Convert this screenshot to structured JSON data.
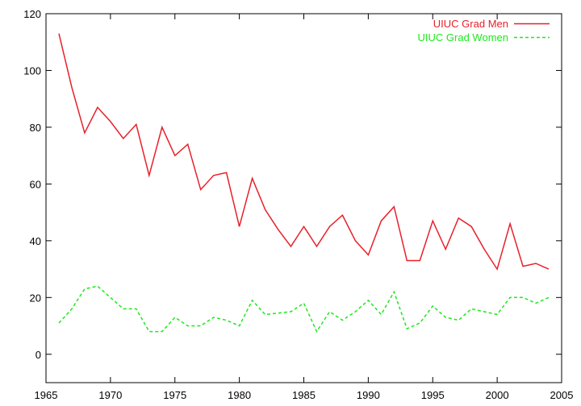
{
  "chart_data": {
    "type": "line",
    "title": "",
    "xlabel": "",
    "ylabel": "",
    "xlim": [
      1965,
      2005
    ],
    "ylim": [
      -10,
      120
    ],
    "xticks": [
      1965,
      1970,
      1975,
      1980,
      1985,
      1990,
      1995,
      2000,
      2005
    ],
    "yticks": [
      0,
      20,
      40,
      60,
      80,
      100,
      120
    ],
    "grid": false,
    "legend_position": "top-right",
    "x": [
      1966,
      1967,
      1968,
      1969,
      1970,
      1971,
      1972,
      1973,
      1974,
      1975,
      1976,
      1977,
      1978,
      1979,
      1980,
      1981,
      1982,
      1983,
      1984,
      1985,
      1986,
      1987,
      1988,
      1989,
      1990,
      1991,
      1992,
      1993,
      1994,
      1995,
      1996,
      1997,
      1998,
      1999,
      2000,
      2001,
      2002,
      2003,
      2004
    ],
    "series": [
      {
        "name": "UIUC Grad Men",
        "color": "#e8202a",
        "dash": "solid",
        "values": [
          113,
          94,
          78,
          87,
          82,
          76,
          81,
          63,
          80,
          70,
          74,
          58,
          63,
          64,
          45,
          62,
          51,
          44,
          38,
          45,
          38,
          45,
          49,
          40,
          35,
          47,
          52,
          33,
          33,
          47,
          37,
          48,
          45,
          37,
          30,
          46,
          31,
          32,
          30
        ]
      },
      {
        "name": "UIUC Grad Women",
        "color": "#1ee81e",
        "dash": "dashed",
        "values": [
          11,
          16,
          23,
          24,
          20,
          16,
          16,
          8,
          8,
          13,
          10,
          10,
          13,
          12,
          10,
          19,
          14,
          14.5,
          15,
          18,
          8,
          15,
          12,
          15,
          19,
          14,
          22,
          9,
          11,
          17,
          13,
          12,
          16,
          15,
          14,
          20,
          20,
          18,
          20
        ]
      }
    ]
  }
}
